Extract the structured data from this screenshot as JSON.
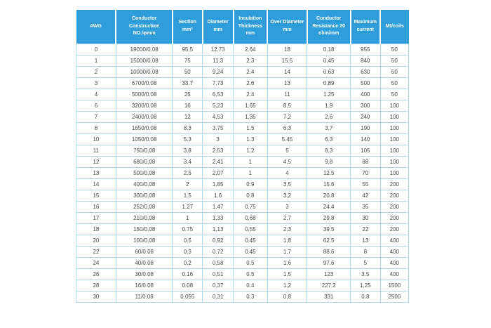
{
  "chart_data": {
    "type": "table",
    "title": "AWG wire specification table",
    "columns": [
      {
        "name": "awg",
        "lines": [
          "AWG"
        ]
      },
      {
        "name": "conductor-construction",
        "lines": [
          "Conductor",
          "Construction",
          "NO./φmm"
        ]
      },
      {
        "name": "section",
        "lines": [
          "Section",
          "mm²"
        ]
      },
      {
        "name": "diameter",
        "lines": [
          "Diameter",
          "mm"
        ]
      },
      {
        "name": "insulation-thickness",
        "lines": [
          "Insulation",
          "Thickness",
          "mm"
        ]
      },
      {
        "name": "over-diameter",
        "lines": [
          "Over Diameter",
          "mm"
        ]
      },
      {
        "name": "conductor-resistance",
        "lines": [
          "Conductor",
          "Resistance 20",
          "ohm/mm"
        ]
      },
      {
        "name": "maximum-current",
        "lines": [
          "Maximum",
          "current"
        ]
      },
      {
        "name": "mt-coils",
        "lines": [
          "Mt/coils"
        ]
      }
    ],
    "rows": [
      [
        "0",
        "19000/0.08",
        "95.5",
        "12.73",
        "2.64",
        "18",
        "0.18",
        "955",
        "50"
      ],
      [
        "1",
        "15000/0.08",
        "75",
        "11.3",
        "2.3",
        "15.5",
        "0.45",
        "840",
        "50"
      ],
      [
        "2",
        "10000/0.08",
        "50",
        "9.24",
        "2.4",
        "14",
        "0.63",
        "630",
        "50"
      ],
      [
        "3",
        "6700/0.08",
        "33.7",
        "7.73",
        "2.6",
        "13",
        "0.89",
        "500",
        "50"
      ],
      [
        "4",
        "5000/0.08",
        "25",
        "6.53",
        "2.4",
        "11",
        "1.25",
        "400",
        "50"
      ],
      [
        "6",
        "3200/0.08",
        "16",
        "5.23",
        "1.65",
        "8.5",
        "1.9",
        "300",
        "100"
      ],
      [
        "7",
        "2400/0.08",
        "12",
        "4.53",
        "1.35",
        "7.2",
        "2.6",
        "240",
        "100"
      ],
      [
        "8",
        "1650/0.08",
        "8.3",
        "3.75",
        "1.5",
        "6.3",
        "3.7",
        "190",
        "100"
      ],
      [
        "10",
        "1050/0.08",
        "5.3",
        "3",
        "1.3",
        "5.45",
        "6.3",
        "140",
        "100"
      ],
      [
        "11",
        "750/0.08",
        "3.8",
        "2.53",
        "1.2",
        "5",
        "8.3",
        "105",
        "100"
      ],
      [
        "12",
        "680/0.08",
        "3.4",
        "2.41",
        "1",
        "4.5",
        "9.8",
        "88",
        "100"
      ],
      [
        "13",
        "500/0.08",
        "2.5",
        "2.07",
        "1",
        "4",
        "12.5",
        "70",
        "100"
      ],
      [
        "14",
        "400/0.08",
        "2",
        "1.85",
        "0.9",
        "3.5",
        "15.6",
        "55",
        "200"
      ],
      [
        "15",
        "300/0.08",
        "1.5",
        "1.6",
        "0.8",
        "3.2",
        "20.8",
        "42",
        "200"
      ],
      [
        "16",
        "252/0.08",
        "1.27",
        "1.47",
        "0.75",
        "3",
        "24.4",
        "35",
        "200"
      ],
      [
        "17",
        "210/0.08",
        "1",
        "1.33",
        "0.68",
        "2.7",
        "29.8",
        "30",
        "200"
      ],
      [
        "18",
        "150/0.08",
        "0.75",
        "1.13",
        "0.55",
        "2.3",
        "39.5",
        "22",
        "200"
      ],
      [
        "20",
        "100/0.08",
        "0.5",
        "0.92",
        "0.45",
        "1.8",
        "62.5",
        "13",
        "400"
      ],
      [
        "22",
        "60/0.08",
        "0.3",
        "0.72",
        "0.45",
        "1.7",
        "88.6",
        "8",
        "400"
      ],
      [
        "24",
        "40/0.08",
        "0.2",
        "0.58",
        "0.5",
        "1.6",
        "97.6",
        "5",
        "400"
      ],
      [
        "26",
        "30/0.08",
        "0.16",
        "0.51",
        "0.5",
        "1.5",
        "123",
        "3.5",
        "400"
      ],
      [
        "28",
        "16/0.08",
        "0.08",
        "0.37",
        "0.4",
        "1.2",
        "227.2",
        "1.25",
        "1500"
      ],
      [
        "30",
        "11/0.08",
        "0.055",
        "0.31",
        "0.3",
        "0.8",
        "331",
        "0.8",
        "2500"
      ]
    ],
    "layout": {
      "grid": true,
      "header_position": "top"
    }
  },
  "colors": {
    "page_bg": "#ffffff",
    "header_bg": "#2f9dda",
    "header_text": "#ffffff",
    "grid_line": "#a9dcf0",
    "cell_text": "#474747"
  }
}
